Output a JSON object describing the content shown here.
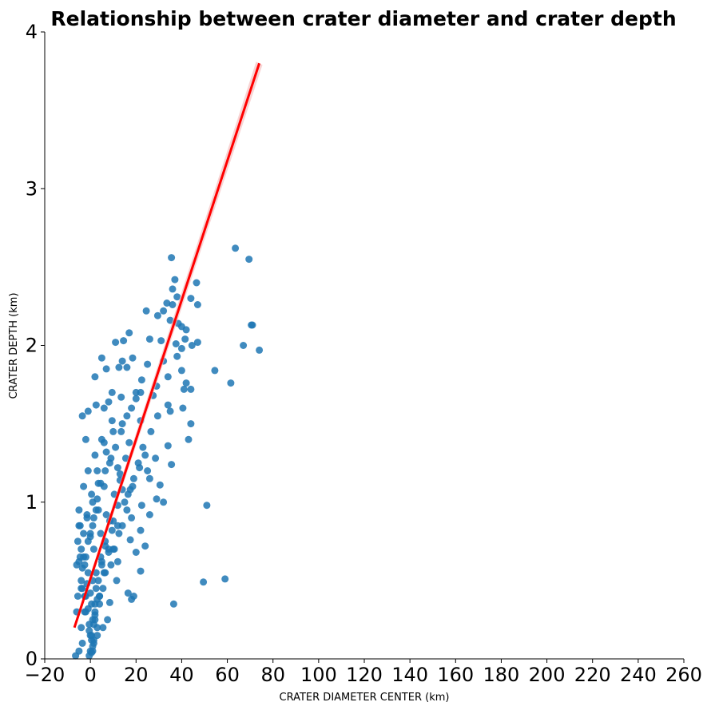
{
  "chart_data": {
    "type": "scatter",
    "title": "Relationship between crater diameter and crater depth",
    "xlabel": "CRATER DIAMETER CENTER (km)",
    "ylabel": "CRATER DEPTH (km)",
    "xlim": [
      -20,
      260
    ],
    "ylim": [
      0,
      4
    ],
    "x_ticks": [
      -20,
      0,
      20,
      40,
      60,
      80,
      100,
      120,
      140,
      160,
      180,
      200,
      220,
      240,
      260
    ],
    "y_ticks": [
      0,
      1,
      2,
      3,
      4
    ],
    "x_tick_labels": [
      "−20",
      "0",
      "20",
      "40",
      "60",
      "80",
      "100",
      "120",
      "140",
      "160",
      "180",
      "200",
      "220",
      "240",
      "260"
    ],
    "y_tick_labels": [
      "0",
      "1",
      "2",
      "3",
      "4"
    ],
    "grid": false,
    "legend": "none",
    "colors": {
      "points": "#1f77b4",
      "regression_line": "#ff0000",
      "confidence_band": "#f4b8b8"
    },
    "series": [
      {
        "kind": "points",
        "x": [
          35.5,
          63.5,
          69.5,
          37.0,
          46.5,
          36.0,
          38.0,
          44.0,
          47.0,
          33.5,
          36.0,
          32.0,
          24.5,
          29.5,
          35.0,
          38.5,
          40.0,
          42.0,
          70.5,
          71.0,
          17.0,
          11.0,
          5.0,
          14.5,
          26.0,
          31.0,
          37.5,
          41.5,
          44.5,
          47.0,
          40.0,
          67.0,
          74.0,
          38.0,
          18.5,
          14.0,
          12.5,
          2.0,
          7.0,
          16.0,
          25.0,
          32.0,
          40.0,
          42.0,
          54.5,
          61.5,
          34.0,
          41.0,
          44.0,
          22.5,
          29.0,
          9.5,
          6.0,
          -1.0,
          -3.5,
          2.5,
          8.0,
          13.5,
          20.0,
          27.5,
          34.0,
          29.5,
          35.0,
          40.5,
          44.0,
          22.0,
          26.5,
          34.0,
          43.0,
          35.5,
          30.5,
          23.0,
          28.5,
          21.0,
          25.0,
          26.0,
          29.0,
          17.5,
          13.0,
          9.0,
          7.0,
          12.0,
          16.5,
          22.5,
          51.0,
          32.0,
          26.0,
          18.0,
          14.0,
          22.0,
          17.5,
          49.5,
          59.0,
          36.5,
          24.0,
          20.0,
          22.0,
          19.0,
          18.0,
          16.5,
          11.5,
          8.5,
          5.5,
          3.0,
          1.5,
          -3.5,
          -5.0,
          -6.5,
          1.0,
          4.0,
          6.5,
          10.0,
          12.0,
          15.0,
          18.5,
          21.5,
          24.0,
          10.0,
          14.0,
          6.0,
          3.0,
          0.5,
          -1.5,
          -4.0,
          -5.5,
          2.0,
          5.5,
          9.0,
          12.5,
          16.0,
          19.0,
          7.5,
          4.0,
          1.0,
          -2.0,
          -4.5,
          -6.0,
          0.0,
          3.5,
          6.0,
          8.5,
          11.0,
          13.5,
          16.0,
          18.0,
          20.0,
          22.0,
          9.5,
          5.0,
          2.0,
          -1.0,
          -3.0,
          -5.0,
          1.5,
          4.5,
          7.0,
          10.5,
          13.0,
          15.5,
          17.0,
          3.0,
          0.0,
          -2.5,
          -4.0,
          -5.5,
          2.5,
          5.0,
          8.0,
          10.0,
          12.0,
          14.0,
          6.5,
          3.5,
          1.0,
          -1.5,
          -3.0,
          -4.5,
          0.5,
          2.5,
          4.5,
          6.5,
          8.5,
          10.5,
          12.0,
          1.5,
          -0.5,
          -2.0,
          -3.5,
          -5.0,
          0.0,
          2.0,
          4.0,
          6.0,
          8.0,
          9.5,
          2.5,
          1.0,
          -1.0,
          -2.5,
          -4.0,
          -6.0,
          0.5,
          2.0,
          3.5,
          5.0,
          6.5,
          1.0,
          -0.5,
          -2.0,
          -3.5,
          -5.0,
          0.0,
          1.5,
          3.0,
          4.5,
          -1.0,
          -2.5,
          -4.0,
          0.5,
          2.0,
          -1.5,
          -3.0,
          1.0,
          -0.5,
          0.0,
          -1.0,
          1.5,
          3.0,
          -2.0,
          0.5
        ],
        "y": [
          2.56,
          2.62,
          2.55,
          2.42,
          2.4,
          2.36,
          2.31,
          2.3,
          2.26,
          2.27,
          2.26,
          2.22,
          2.22,
          2.19,
          2.16,
          2.14,
          2.12,
          2.1,
          2.13,
          2.13,
          2.08,
          2.02,
          1.92,
          2.03,
          2.04,
          2.03,
          2.01,
          2.04,
          2.0,
          2.02,
          1.98,
          2.0,
          1.97,
          1.93,
          1.92,
          1.9,
          1.86,
          1.8,
          1.85,
          1.86,
          1.88,
          1.9,
          1.84,
          1.76,
          1.84,
          1.76,
          1.8,
          1.72,
          1.72,
          1.78,
          1.74,
          1.7,
          1.6,
          1.58,
          1.55,
          1.62,
          1.64,
          1.67,
          1.7,
          1.68,
          1.62,
          1.55,
          1.58,
          1.6,
          1.5,
          1.52,
          1.45,
          1.36,
          1.4,
          1.24,
          1.11,
          1.35,
          1.28,
          1.25,
          1.2,
          1.15,
          1.02,
          1.08,
          1.14,
          1.28,
          1.32,
          1.22,
          1.05,
          0.98,
          0.98,
          1.0,
          0.92,
          0.9,
          0.85,
          0.82,
          0.76,
          0.49,
          0.51,
          0.35,
          0.72,
          0.68,
          0.56,
          0.4,
          0.38,
          0.42,
          0.5,
          0.36,
          0.2,
          0.15,
          0.12,
          0.1,
          0.05,
          0.02,
          0.25,
          0.4,
          0.55,
          0.7,
          0.85,
          1.0,
          1.1,
          1.22,
          1.3,
          1.45,
          1.5,
          1.38,
          1.2,
          1.05,
          0.9,
          0.7,
          0.4,
          0.3,
          0.45,
          0.6,
          0.8,
          0.95,
          1.15,
          0.25,
          0.35,
          0.5,
          0.65,
          0.85,
          0.6,
          0.8,
          0.95,
          1.1,
          1.25,
          1.35,
          1.45,
          1.55,
          1.6,
          1.66,
          1.7,
          1.52,
          1.4,
          1.3,
          1.2,
          1.1,
          0.95,
          0.7,
          0.8,
          0.92,
          1.05,
          1.18,
          1.28,
          1.38,
          0.2,
          0.15,
          0.3,
          0.5,
          0.75,
          0.45,
          0.6,
          0.7,
          0.88,
          0.98,
          1.08,
          1.2,
          1.12,
          1.0,
          0.92,
          0.8,
          0.65,
          0.35,
          0.55,
          0.65,
          0.75,
          0.88,
          0.7,
          0.62,
          0.1,
          0.22,
          0.4,
          0.58,
          0.85,
          0.05,
          0.25,
          0.4,
          0.55,
          0.68,
          0.82,
          0.95,
          0.85,
          0.75,
          0.6,
          0.45,
          0.3,
          0.15,
          0.35,
          0.5,
          0.62,
          0.72,
          0.08,
          0.18,
          0.3,
          0.45,
          0.62,
          0.78,
          0.9,
          1.02,
          1.12,
          0.55,
          0.4,
          0.2,
          0.12,
          0.28,
          0.48,
          0.65,
          0.05,
          0.02,
          0.42,
          0.32,
          0.22,
          0.38,
          1.4,
          0.04
        ]
      },
      {
        "kind": "regression_line",
        "x": [
          -7.0,
          74.0
        ],
        "y": [
          0.2,
          3.8
        ]
      }
    ]
  }
}
